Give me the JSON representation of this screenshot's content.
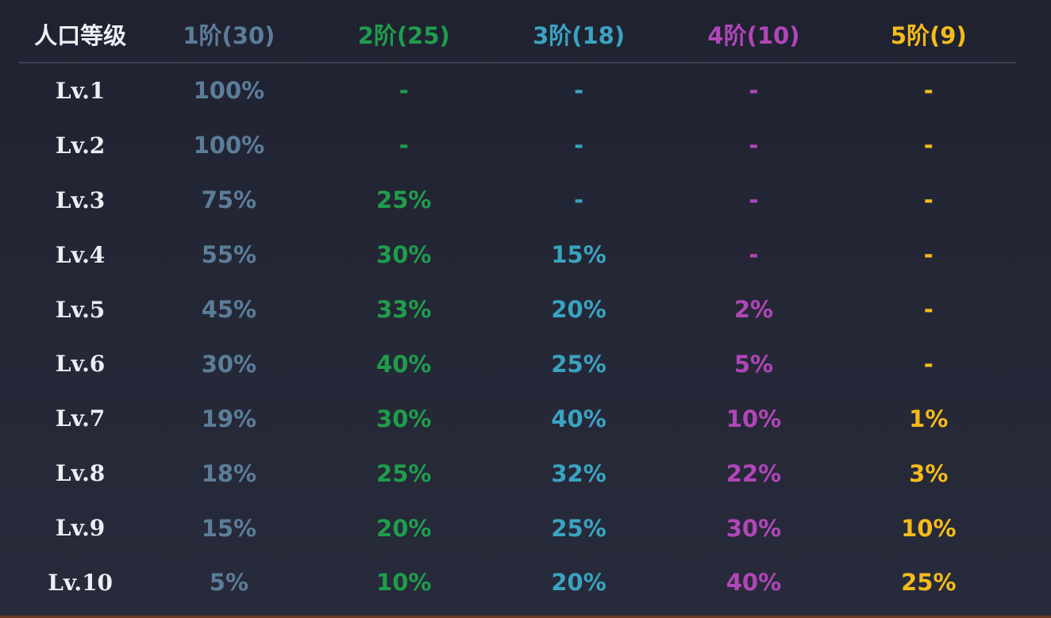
{
  "colors": {
    "background": "#232634",
    "tier1": "#5c7d99",
    "tier2": "#1f9d4b",
    "tier3": "#3aa3c0",
    "tier4": "#b146b8",
    "tier5": "#f5bb1a",
    "level_text": "#eceef3"
  },
  "table": {
    "headers": [
      "人口等级",
      "1阶(30)",
      "2阶(25)",
      "3阶(18)",
      "4阶(10)",
      "5阶(9)"
    ],
    "rows": [
      {
        "level": "Lv.1",
        "values": [
          "100%",
          "-",
          "-",
          "-",
          "-"
        ]
      },
      {
        "level": "Lv.2",
        "values": [
          "100%",
          "-",
          "-",
          "-",
          "-"
        ]
      },
      {
        "level": "Lv.3",
        "values": [
          "75%",
          "25%",
          "-",
          "-",
          "-"
        ]
      },
      {
        "level": "Lv.4",
        "values": [
          "55%",
          "30%",
          "15%",
          "-",
          "-"
        ]
      },
      {
        "level": "Lv.5",
        "values": [
          "45%",
          "33%",
          "20%",
          "2%",
          "-"
        ]
      },
      {
        "level": "Lv.6",
        "values": [
          "30%",
          "40%",
          "25%",
          "5%",
          "-"
        ]
      },
      {
        "level": "Lv.7",
        "values": [
          "19%",
          "30%",
          "40%",
          "10%",
          "1%"
        ]
      },
      {
        "level": "Lv.8",
        "values": [
          "18%",
          "25%",
          "32%",
          "22%",
          "3%"
        ]
      },
      {
        "level": "Lv.9",
        "values": [
          "15%",
          "20%",
          "25%",
          "30%",
          "10%"
        ]
      },
      {
        "level": "Lv.10",
        "values": [
          "5%",
          "10%",
          "20%",
          "40%",
          "25%"
        ]
      }
    ]
  }
}
